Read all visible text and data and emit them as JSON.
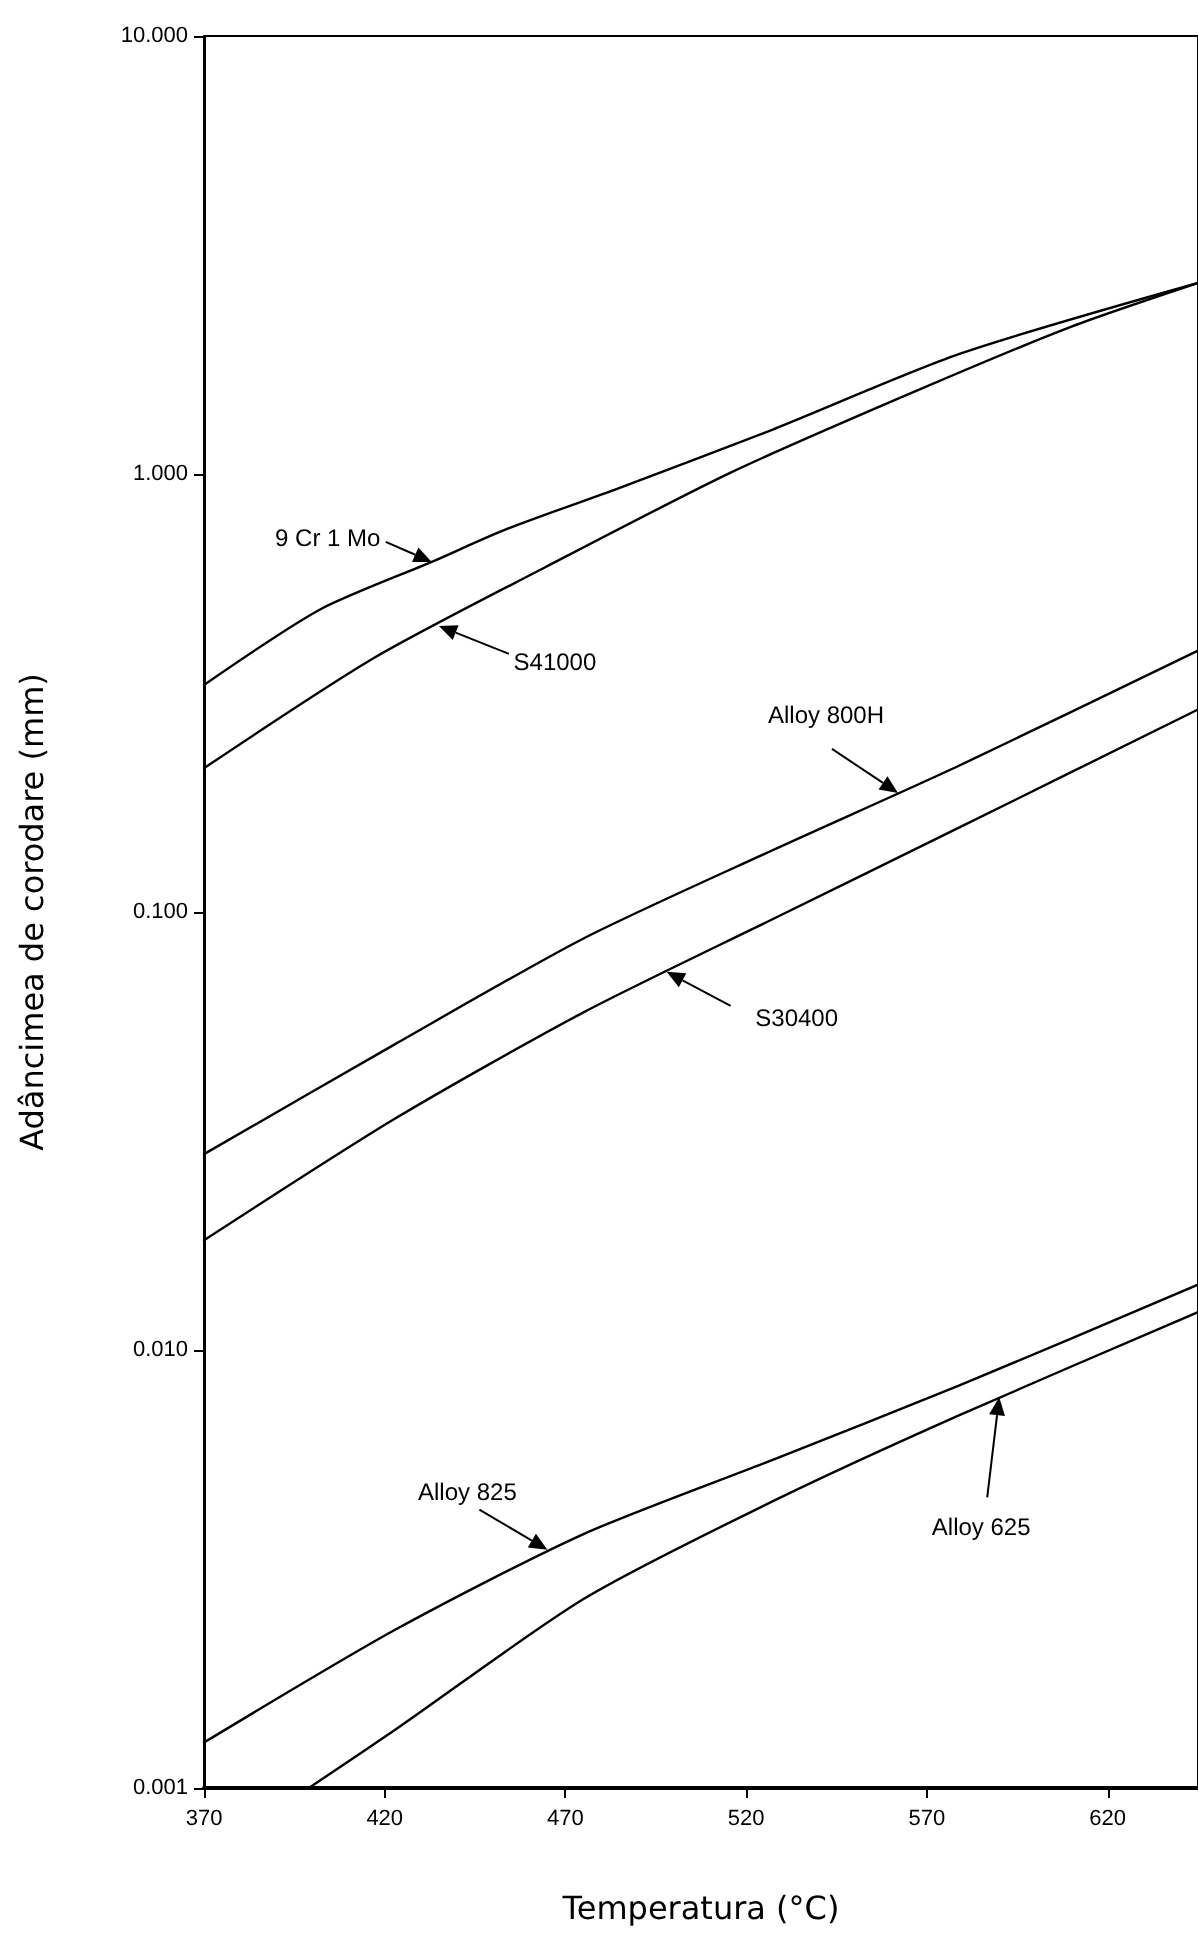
{
  "chart_data": {
    "type": "line",
    "xlabel": "Temperatura (°C)",
    "ylabel": "Adâncimea de corodare (mm)",
    "log": "y",
    "xlim": [
      370,
      645
    ],
    "xticks": [
      370,
      420,
      470,
      520,
      570,
      620
    ],
    "ylim": [
      0.001,
      10
    ],
    "yticks": [
      {
        "value": 0.001,
        "label": "0.001"
      },
      {
        "value": 0.01,
        "label": "0.010"
      },
      {
        "value": 0.1,
        "label": "0.100"
      },
      {
        "value": 1,
        "label": "1.000"
      },
      {
        "value": 10,
        "label": "10.000"
      }
    ],
    "grid": false,
    "marker": "none",
    "line_style": "solid",
    "series": [
      {
        "color": "#000000",
        "x": [
          370,
          402,
          433,
          454,
          485,
          527,
          579,
          645
        ],
        "values": [
          0.33,
          0.49,
          0.63,
          0.75,
          0.93,
          1.26,
          1.88,
          2.73
        ]
      },
      {
        "color": "#000000",
        "x": [
          370,
          417,
          464,
          516,
          568,
          610,
          645
        ],
        "values": [
          0.213,
          0.38,
          0.61,
          1.01,
          1.56,
          2.17,
          2.73
        ]
      },
      {
        "color": "#000000",
        "x": [
          370,
          423,
          475,
          527,
          579,
          645
        ],
        "values": [
          0.028,
          0.05,
          0.087,
          0.138,
          0.216,
          0.395
        ]
      },
      {
        "color": "#000000",
        "x": [
          370,
          423,
          475,
          527,
          579,
          645
        ],
        "values": [
          0.0178,
          0.0338,
          0.059,
          0.096,
          0.156,
          0.29
        ]
      },
      {
        "color": "#000000",
        "x": [
          370,
          423,
          475,
          527,
          579,
          645
        ],
        "values": [
          0.00127,
          0.0023,
          0.0038,
          0.0056,
          0.0083,
          0.0141
        ]
      },
      {
        "color": "#000000",
        "x": [
          399,
          423,
          475,
          527,
          579,
          645
        ],
        "values": [
          0.001,
          0.00136,
          0.0027,
          0.0045,
          0.0071,
          0.0122
        ]
      }
    ],
    "annotations": [
      {
        "text": "9 Cr 1 Mo",
        "x": 433,
        "y": 0.63
      },
      {
        "text": "S41000",
        "x": 435,
        "y": 0.45
      },
      {
        "text": "Alloy 800H",
        "x": 562,
        "y": 0.187
      },
      {
        "text": "S30400",
        "x": 498,
        "y": 0.073
      },
      {
        "text": "Alloy 825",
        "x": 465,
        "y": 0.0035
      },
      {
        "text": "Alloy 625",
        "x": 590,
        "y": 0.0078
      }
    ]
  }
}
